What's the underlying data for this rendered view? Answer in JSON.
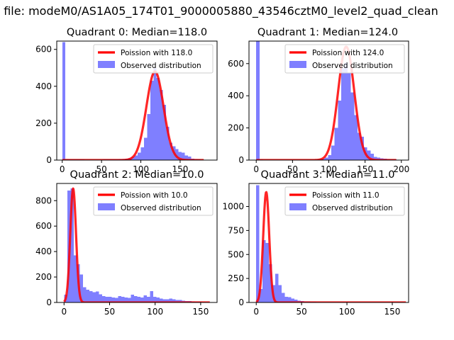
{
  "figure": {
    "suptitle": "n file: modeM0/AS1A05_174T01_9000005880_43546cztM0_level2_quad_clean"
  },
  "colors": {
    "hist": "#7f7fff",
    "poisson_line": "#ff0000",
    "poisson_halo": "#ff9999",
    "axes": "#000000",
    "background": "#ffffff"
  },
  "chart_data": [
    {
      "type": "bar",
      "title": "Quadrant 0: Median=118.0",
      "xlabel": "",
      "ylabel": "",
      "xlim": [
        -7,
        197
      ],
      "ylim": [
        0,
        645
      ],
      "xticks": [
        0,
        50,
        100,
        150
      ],
      "yticks": [
        0,
        200,
        400,
        600
      ],
      "legend": [
        "Poission with 118.0",
        "Observed distribution"
      ],
      "legend_position": "top-right",
      "hist_bin_width": 4,
      "hist": [
        [
          0,
          640
        ],
        [
          4,
          5
        ],
        [
          8,
          4
        ],
        [
          12,
          3
        ],
        [
          16,
          3
        ],
        [
          20,
          3
        ],
        [
          24,
          3
        ],
        [
          28,
          2
        ],
        [
          32,
          2
        ],
        [
          36,
          2
        ],
        [
          40,
          2
        ],
        [
          44,
          2
        ],
        [
          48,
          2
        ],
        [
          52,
          3
        ],
        [
          56,
          4
        ],
        [
          60,
          4
        ],
        [
          64,
          4
        ],
        [
          68,
          4
        ],
        [
          72,
          6
        ],
        [
          76,
          6
        ],
        [
          80,
          8
        ],
        [
          84,
          12
        ],
        [
          88,
          18
        ],
        [
          92,
          25
        ],
        [
          96,
          40
        ],
        [
          100,
          70
        ],
        [
          104,
          120
        ],
        [
          108,
          250
        ],
        [
          112,
          430
        ],
        [
          116,
          500
        ],
        [
          120,
          445
        ],
        [
          124,
          380
        ],
        [
          128,
          300
        ],
        [
          132,
          180
        ],
        [
          136,
          95
        ],
        [
          140,
          75
        ],
        [
          144,
          60
        ],
        [
          148,
          45
        ],
        [
          152,
          40
        ],
        [
          156,
          25
        ],
        [
          160,
          20
        ],
        [
          164,
          8
        ],
        [
          168,
          6
        ],
        [
          172,
          4
        ],
        [
          176,
          2
        ],
        [
          180,
          1
        ]
      ],
      "poisson": {
        "mean": 118,
        "peak": 480,
        "x_range": [
          0,
          180
        ]
      }
    },
    {
      "type": "bar",
      "title": "Quadrant 1: Median=124.0",
      "xlabel": "",
      "ylabel": "",
      "xlim": [
        -10,
        210
      ],
      "ylim": [
        0,
        740
      ],
      "xticks": [
        0,
        50,
        100,
        150,
        200
      ],
      "yticks": [
        0,
        200,
        400,
        600
      ],
      "legend": [
        "Poission with 124.0",
        "Observed distribution"
      ],
      "legend_position": "top-right",
      "hist_bin_width": 4.5,
      "hist": [
        [
          0,
          740
        ],
        [
          4.5,
          4
        ],
        [
          9,
          3
        ],
        [
          13.5,
          3
        ],
        [
          18,
          2
        ],
        [
          22.5,
          2
        ],
        [
          27,
          2
        ],
        [
          31.5,
          2
        ],
        [
          36,
          2
        ],
        [
          40.5,
          2
        ],
        [
          45,
          2
        ],
        [
          49.5,
          2
        ],
        [
          54,
          2
        ],
        [
          58.5,
          2
        ],
        [
          63,
          2
        ],
        [
          67.5,
          2
        ],
        [
          72,
          3
        ],
        [
          76.5,
          3
        ],
        [
          81,
          3
        ],
        [
          85.5,
          5
        ],
        [
          90,
          8
        ],
        [
          94.5,
          15
        ],
        [
          99,
          30
        ],
        [
          103.5,
          90
        ],
        [
          108,
          200
        ],
        [
          112.5,
          370
        ],
        [
          117,
          570
        ],
        [
          121.5,
          605
        ],
        [
          126,
          540
        ],
        [
          130.5,
          420
        ],
        [
          135,
          280
        ],
        [
          139.5,
          170
        ],
        [
          144,
          145
        ],
        [
          148.5,
          80
        ],
        [
          153,
          60
        ],
        [
          157.5,
          40
        ],
        [
          162,
          20
        ],
        [
          166.5,
          15
        ],
        [
          171,
          10
        ],
        [
          175.5,
          8
        ],
        [
          180,
          6
        ],
        [
          184.5,
          5
        ],
        [
          189,
          4
        ],
        [
          193.5,
          3
        ]
      ],
      "poisson": {
        "mean": 124,
        "peak": 705,
        "x_range": [
          0,
          193
        ]
      }
    },
    {
      "type": "bar",
      "title": "Quadrant 2: Median=10.0",
      "xlabel": "",
      "ylabel": "",
      "xlim": [
        -8,
        168
      ],
      "ylim": [
        0,
        935
      ],
      "xticks": [
        0,
        50,
        100,
        150
      ],
      "yticks": [
        0,
        200,
        400,
        600,
        800
      ],
      "legend": [
        "Poission with 10.0",
        "Observed distribution"
      ],
      "legend_position": "top-right",
      "hist_bin_width": 3.5,
      "hist": [
        [
          0,
          60
        ],
        [
          3.5,
          880
        ],
        [
          7,
          895
        ],
        [
          10.5,
          370
        ],
        [
          14,
          300
        ],
        [
          17.5,
          220
        ],
        [
          21,
          120
        ],
        [
          24.5,
          100
        ],
        [
          28,
          90
        ],
        [
          31.5,
          80
        ],
        [
          35,
          85
        ],
        [
          38.5,
          65
        ],
        [
          42,
          50
        ],
        [
          45.5,
          45
        ],
        [
          49,
          45
        ],
        [
          52.5,
          40
        ],
        [
          56,
          35
        ],
        [
          59.5,
          50
        ],
        [
          63,
          45
        ],
        [
          66.5,
          40
        ],
        [
          70,
          35
        ],
        [
          73.5,
          60
        ],
        [
          77,
          50
        ],
        [
          80.5,
          45
        ],
        [
          84,
          40
        ],
        [
          87.5,
          55
        ],
        [
          91,
          45
        ],
        [
          94.5,
          90
        ],
        [
          98,
          45
        ],
        [
          101.5,
          40
        ],
        [
          105,
          30
        ],
        [
          108.5,
          25
        ],
        [
          112,
          25
        ],
        [
          115.5,
          30
        ],
        [
          119,
          25
        ],
        [
          122.5,
          20
        ],
        [
          126,
          20
        ],
        [
          129.5,
          15
        ],
        [
          133,
          10
        ],
        [
          136.5,
          10
        ],
        [
          140,
          8
        ],
        [
          143.5,
          5
        ],
        [
          147,
          5
        ],
        [
          150.5,
          4
        ],
        [
          154,
          3
        ],
        [
          157.5,
          2
        ]
      ],
      "poisson": {
        "mean": 10,
        "peak": 895,
        "x_range": [
          0,
          160
        ]
      }
    },
    {
      "type": "bar",
      "title": "Quadrant 3: Median=11.0",
      "xlabel": "",
      "ylabel": "",
      "xlim": [
        -8,
        168
      ],
      "ylim": [
        0,
        1240
      ],
      "xticks": [
        0,
        50,
        100,
        150
      ],
      "yticks": [
        0,
        250,
        500,
        750,
        1000
      ],
      "legend": [
        "Poission with 11.0",
        "Observed distribution"
      ],
      "legend_position": "top-right",
      "hist_bin_width": 3.5,
      "hist": [
        [
          0,
          1220
        ],
        [
          3.5,
          140
        ],
        [
          7,
          650
        ],
        [
          10.5,
          620
        ],
        [
          14,
          400
        ],
        [
          17.5,
          180
        ],
        [
          21,
          300
        ],
        [
          24.5,
          180
        ],
        [
          28,
          100
        ],
        [
          31.5,
          60
        ],
        [
          35,
          55
        ],
        [
          38.5,
          40
        ],
        [
          42,
          30
        ],
        [
          45.5,
          20
        ],
        [
          49,
          15
        ],
        [
          52.5,
          12
        ],
        [
          56,
          10
        ],
        [
          59.5,
          8
        ],
        [
          63,
          6
        ],
        [
          66.5,
          5
        ],
        [
          70,
          4
        ],
        [
          73.5,
          3
        ],
        [
          77,
          3
        ],
        [
          80.5,
          2
        ],
        [
          84,
          2
        ],
        [
          87.5,
          2
        ]
      ],
      "poisson": {
        "mean": 11,
        "peak": 1150,
        "x_range": [
          0,
          165
        ]
      }
    }
  ]
}
